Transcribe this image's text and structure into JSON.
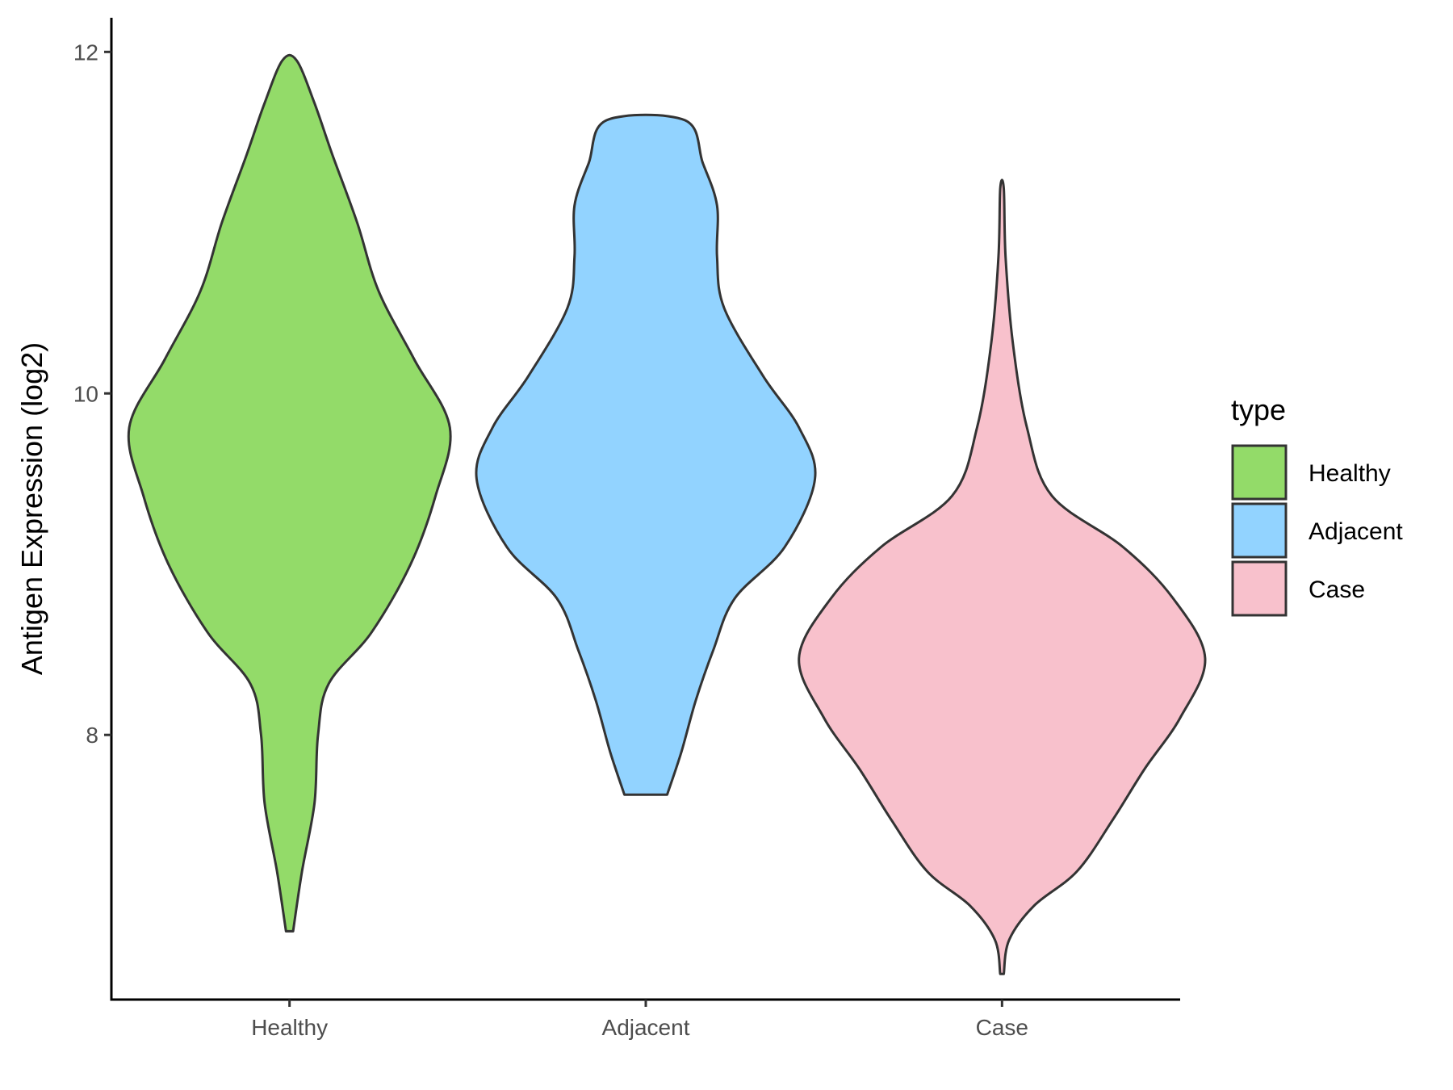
{
  "chart_data": {
    "type": "violin",
    "ylabel": "Antigen Expression (log2)",
    "xlabel": "",
    "categories": [
      "Healthy",
      "Adjacent",
      "Case"
    ],
    "y_ticks": [
      8,
      10,
      12
    ],
    "ylim": [
      6.45,
      12.2
    ],
    "legend": {
      "title": "type",
      "position": "right",
      "entries": [
        "Healthy",
        "Adjacent",
        "Case"
      ]
    },
    "grid": false,
    "series": [
      {
        "name": "Healthy",
        "color": "#93DB69",
        "profile": [
          [
            6.85,
            0.02
          ],
          [
            7.2,
            0.07
          ],
          [
            7.6,
            0.14
          ],
          [
            8.0,
            0.16
          ],
          [
            8.3,
            0.22
          ],
          [
            8.6,
            0.46
          ],
          [
            9.0,
            0.68
          ],
          [
            9.4,
            0.82
          ],
          [
            9.8,
            0.9
          ],
          [
            10.2,
            0.7
          ],
          [
            10.6,
            0.5
          ],
          [
            11.0,
            0.38
          ],
          [
            11.4,
            0.24
          ],
          [
            11.7,
            0.14
          ],
          [
            11.95,
            0.04
          ]
        ]
      },
      {
        "name": "Adjacent",
        "color": "#92D3FF",
        "profile": [
          [
            7.65,
            0.12
          ],
          [
            7.9,
            0.2
          ],
          [
            8.2,
            0.28
          ],
          [
            8.5,
            0.38
          ],
          [
            8.8,
            0.5
          ],
          [
            9.1,
            0.78
          ],
          [
            9.5,
            0.95
          ],
          [
            9.8,
            0.86
          ],
          [
            10.1,
            0.66
          ],
          [
            10.5,
            0.44
          ],
          [
            10.8,
            0.4
          ],
          [
            11.1,
            0.4
          ],
          [
            11.35,
            0.32
          ],
          [
            11.6,
            0.22
          ]
        ]
      },
      {
        "name": "Case",
        "color": "#F8C1CC",
        "profile": [
          [
            6.6,
            0.01
          ],
          [
            6.8,
            0.04
          ],
          [
            7.0,
            0.18
          ],
          [
            7.2,
            0.42
          ],
          [
            7.5,
            0.62
          ],
          [
            7.8,
            0.8
          ],
          [
            8.1,
            1.0
          ],
          [
            8.45,
            1.14
          ],
          [
            8.8,
            0.96
          ],
          [
            9.1,
            0.68
          ],
          [
            9.4,
            0.28
          ],
          [
            9.8,
            0.14
          ],
          [
            10.3,
            0.06
          ],
          [
            10.8,
            0.02
          ],
          [
            11.2,
            0.01
          ]
        ]
      }
    ]
  }
}
